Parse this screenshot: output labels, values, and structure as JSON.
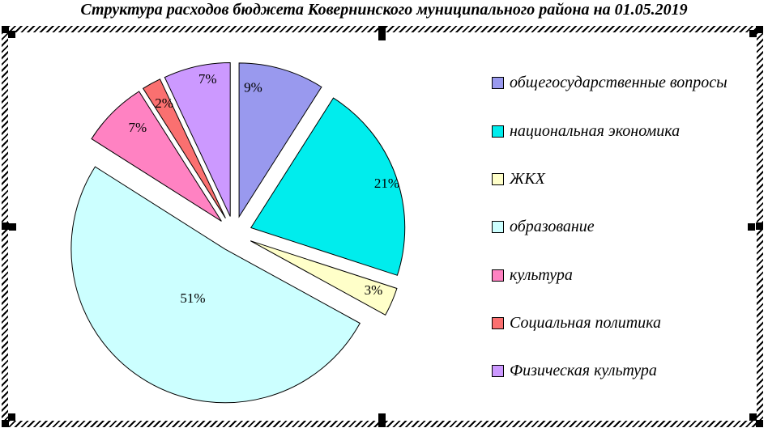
{
  "chart_data": {
    "type": "pie",
    "title": "Структура расходов бюджета Ковернинского муниципального района на 01.05.2019",
    "exploded": true,
    "start_angle_deg": 0,
    "direction": "clockwise",
    "data_labels": "percent",
    "legend_position": "right",
    "slices": [
      {
        "label": "общегосударственные вопросы",
        "value_pct": 9,
        "data_label": "9%",
        "color": "#9999EE"
      },
      {
        "label": "национальная экономика",
        "value_pct": 21,
        "data_label": "21%",
        "color": "#00EDED"
      },
      {
        "label": "ЖКХ",
        "value_pct": 3,
        "data_label": "3%",
        "color": "#FFFFC9"
      },
      {
        "label": "образование",
        "value_pct": 51,
        "data_label": "51%",
        "color": "#CCFFFF"
      },
      {
        "label": "культура",
        "value_pct": 7,
        "data_label": "7%",
        "color": "#FF82C2"
      },
      {
        "label": "Социальная политика",
        "value_pct": 2,
        "data_label": "2%",
        "color": "#FA7070"
      },
      {
        "label": "Физическая культура",
        "value_pct": 7,
        "data_label": "7%",
        "color": "#CC99FF"
      }
    ]
  },
  "selection": {
    "handle_color": "#000000",
    "border_style": "diagonal-hatch"
  }
}
